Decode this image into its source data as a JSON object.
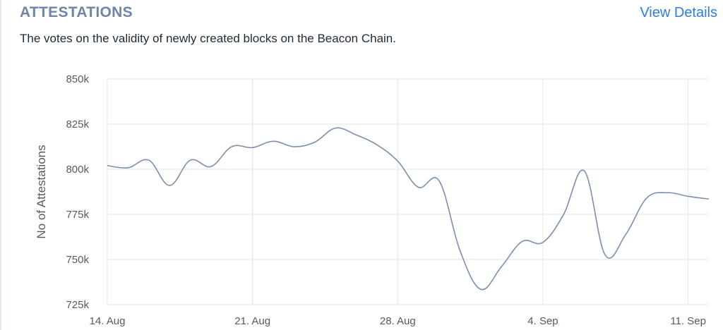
{
  "header": {
    "title": "ATTESTATIONS",
    "view_details_label": "View Details",
    "description": "The votes on the validity of newly created blocks on the Beacon Chain."
  },
  "colors": {
    "title": "#6f85a8",
    "link": "#2f7de8",
    "line": "#7a8fae",
    "grid": "#e6e6e6"
  },
  "chart_data": {
    "type": "line",
    "title": "",
    "xlabel": "",
    "ylabel": "No of Attestations",
    "grid": true,
    "legend": "none",
    "x_ticks": [
      "14. Aug",
      "21. Aug",
      "28. Aug",
      "4. Sep",
      "11. Sep"
    ],
    "y_ticks": [
      "725k",
      "750k",
      "775k",
      "800k",
      "825k",
      "850k"
    ],
    "x_range": [
      "2022-08-14",
      "2022-09-12"
    ],
    "ylim": [
      725000,
      850000
    ],
    "series": [
      {
        "name": "",
        "points": [
          [
            "2022-08-14",
            802000
          ],
          [
            "2022-08-15",
            800800
          ],
          [
            "2022-08-16",
            805000
          ],
          [
            "2022-08-17",
            791000
          ],
          [
            "2022-08-18",
            805000
          ],
          [
            "2022-08-19",
            801500
          ],
          [
            "2022-08-20",
            812500
          ],
          [
            "2022-08-21",
            812000
          ],
          [
            "2022-08-22",
            815500
          ],
          [
            "2022-08-23",
            812500
          ],
          [
            "2022-08-24",
            815000
          ],
          [
            "2022-08-25",
            822800
          ],
          [
            "2022-08-26",
            819000
          ],
          [
            "2022-08-27",
            813500
          ],
          [
            "2022-08-28",
            804500
          ],
          [
            "2022-08-29",
            790000
          ],
          [
            "2022-08-30",
            793500
          ],
          [
            "2022-08-31",
            755000
          ],
          [
            "2022-09-01",
            733500
          ],
          [
            "2022-09-02",
            746000
          ],
          [
            "2022-09-03",
            760000
          ],
          [
            "2022-09-04",
            759500
          ],
          [
            "2022-09-05",
            775000
          ],
          [
            "2022-09-06",
            799000
          ],
          [
            "2022-09-07",
            752500
          ],
          [
            "2022-09-08",
            764000
          ],
          [
            "2022-09-09",
            784000
          ],
          [
            "2022-09-10",
            787000
          ],
          [
            "2022-09-11",
            785000
          ],
          [
            "2022-09-12",
            783500
          ]
        ]
      }
    ]
  }
}
